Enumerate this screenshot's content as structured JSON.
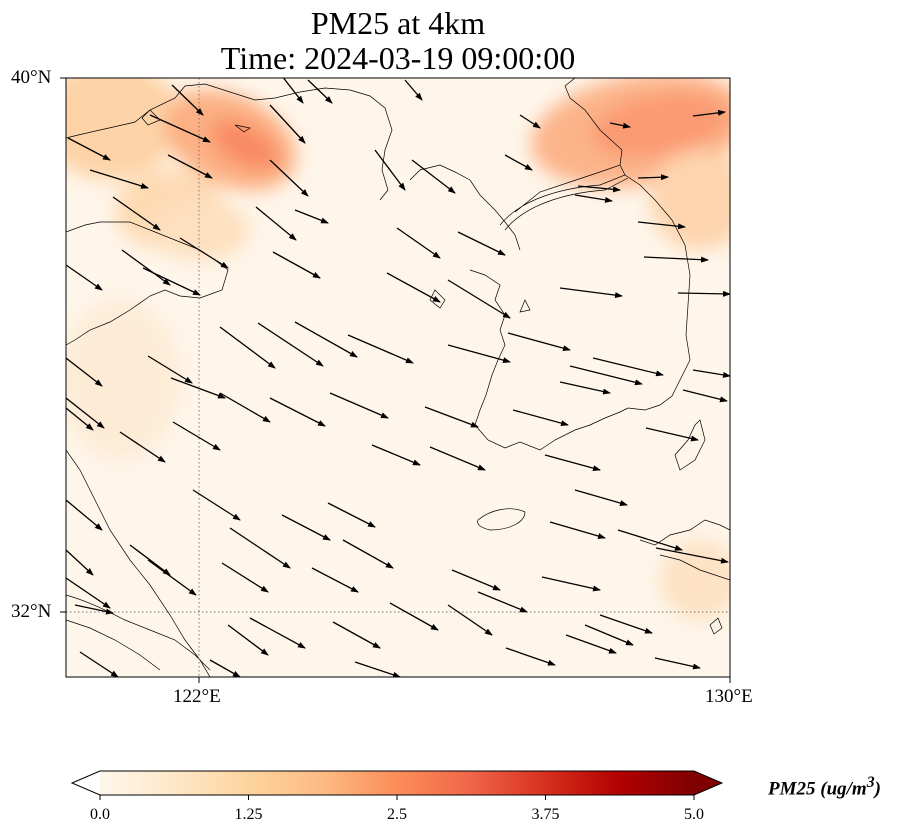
{
  "title": {
    "line1": "PM25 at 4km",
    "line2": "Time: 2024-03-19 09:00:00"
  },
  "axes": {
    "lat_ticks": [
      "40°N",
      "32°N"
    ],
    "lon_ticks": [
      "122°E",
      "130°E"
    ],
    "lat_range": [
      31,
      40
    ],
    "lon_range": [
      120,
      130
    ]
  },
  "colorbar": {
    "label": "PM25 (ug/m",
    "label_sup": "3",
    "label_close": ")",
    "ticks": [
      "0.0",
      "1.25",
      "2.5",
      "3.75",
      "5.0"
    ],
    "min": 0,
    "max": 5,
    "extend": "both",
    "colormap": "OrRd",
    "colors": [
      "#fff7ec",
      "#fee8c8",
      "#fdd49e",
      "#fdbb84",
      "#fc8d59",
      "#ef6548",
      "#d7301f",
      "#b30000",
      "#7f0000"
    ]
  },
  "map_data": {
    "variable": "PM25",
    "level": "4km",
    "gridlines": "dotted",
    "features": [
      "coastlines",
      "wind-vectors",
      "pm25-field"
    ]
  }
}
